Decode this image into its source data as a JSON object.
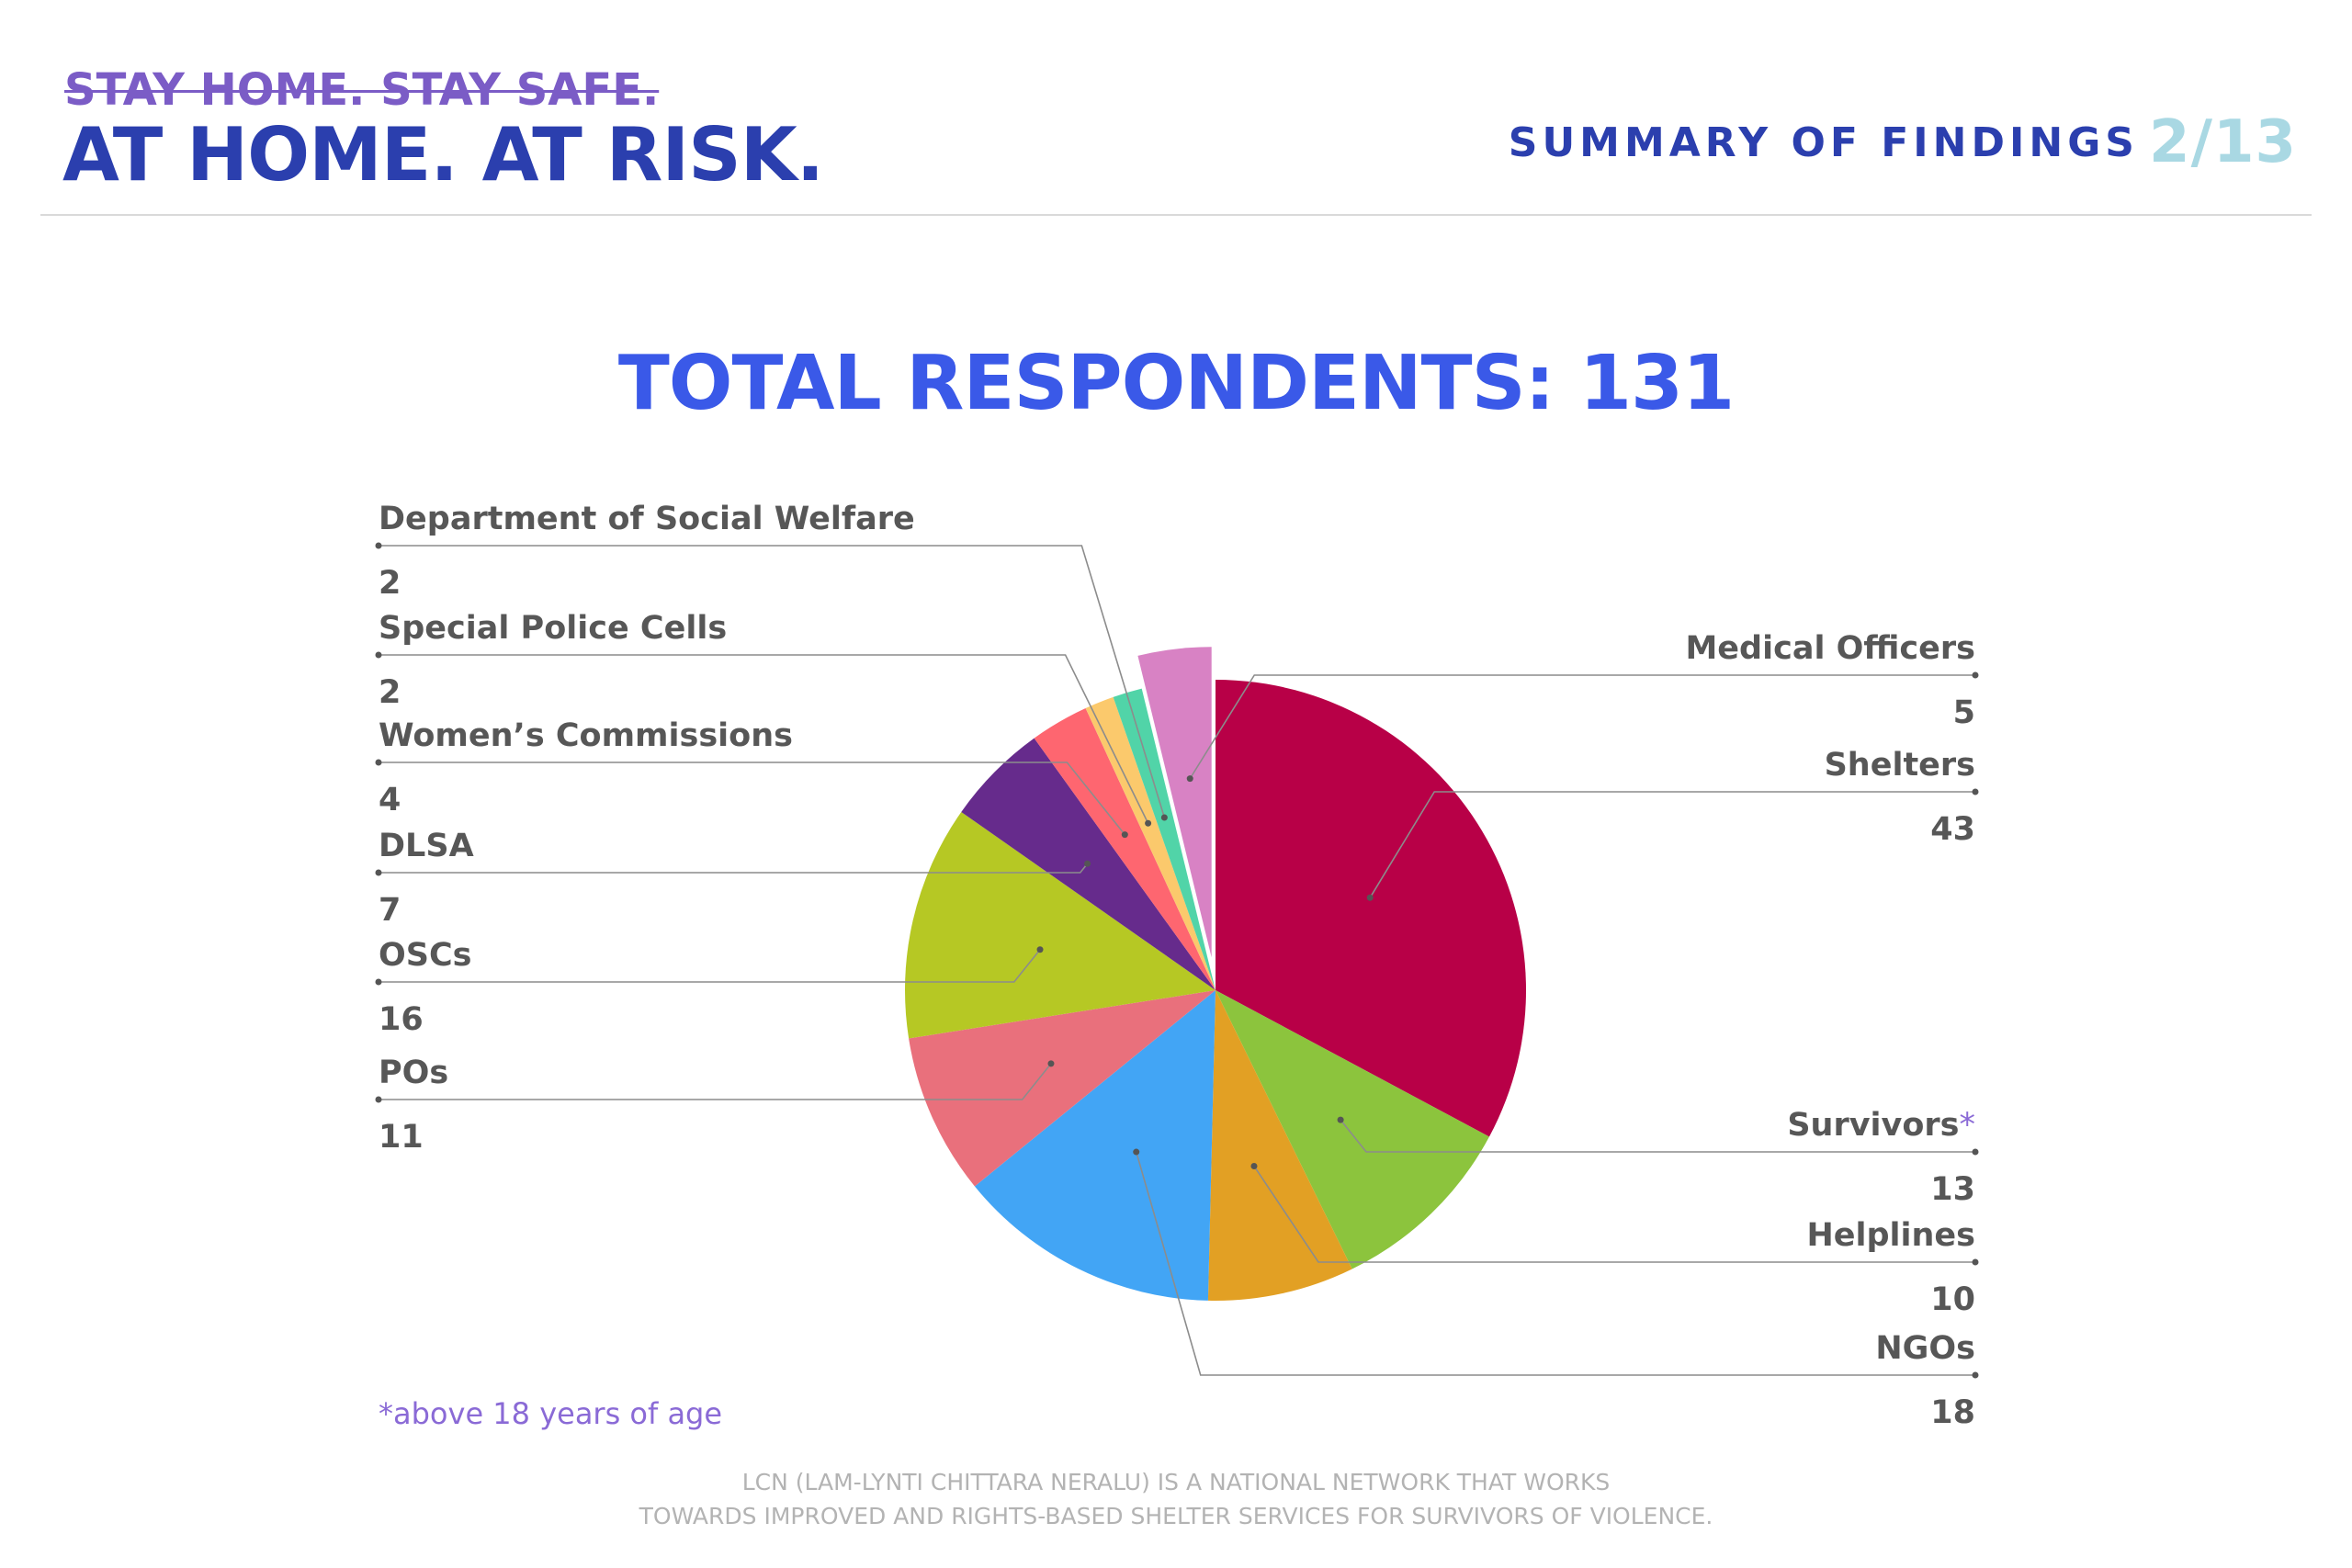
{
  "header": {
    "strike_text": "STAY HOME. STAY SAFE.",
    "main_text": "AT HOME. AT RISK.",
    "section_title": "SUMMARY OF FINDINGS",
    "page_number": "2/13"
  },
  "chart_data": {
    "type": "pie",
    "title": "TOTAL RESPONDENTS: 131",
    "total": 131,
    "slices": [
      {
        "label": "Shelters",
        "value": 43,
        "color": "#b80047",
        "side": "right"
      },
      {
        "label": "Survivors",
        "value": 13,
        "color": "#8cc43d",
        "side": "right",
        "asterisk": "*"
      },
      {
        "label": "Helplines",
        "value": 10,
        "color": "#e2a024",
        "side": "right"
      },
      {
        "label": "NGOs",
        "value": 18,
        "color": "#42a5f5",
        "side": "right"
      },
      {
        "label": "POs",
        "value": 11,
        "color": "#e9707c",
        "side": "left"
      },
      {
        "label": "OSCs",
        "value": 16,
        "color": "#b6c824",
        "side": "left"
      },
      {
        "label": "DLSA",
        "value": 7,
        "color": "#662b8c",
        "side": "left"
      },
      {
        "label": "Women’s Commissions",
        "value": 4,
        "color": "#fe6670",
        "side": "left"
      },
      {
        "label": "Special Police Cells",
        "value": 2,
        "color": "#fbc96c",
        "side": "left"
      },
      {
        "label": "Department of Social Welfare",
        "value": 2,
        "color": "#51d4a8",
        "side": "left"
      },
      {
        "label": "Medical Officers",
        "value": 5,
        "color": "#d882c4",
        "side": "right",
        "exploded": true
      }
    ]
  },
  "footnote": "*above 18 years of age",
  "footer": {
    "line1": "LCN (LAM-LYNTI CHITTARA NERALU) IS A NATIONAL NETWORK THAT WORKS",
    "line2": "TOWARDS IMPROVED AND RIGHTS-BASED SHELTER SERVICES FOR SURVIVORS OF VIOLENCE."
  }
}
